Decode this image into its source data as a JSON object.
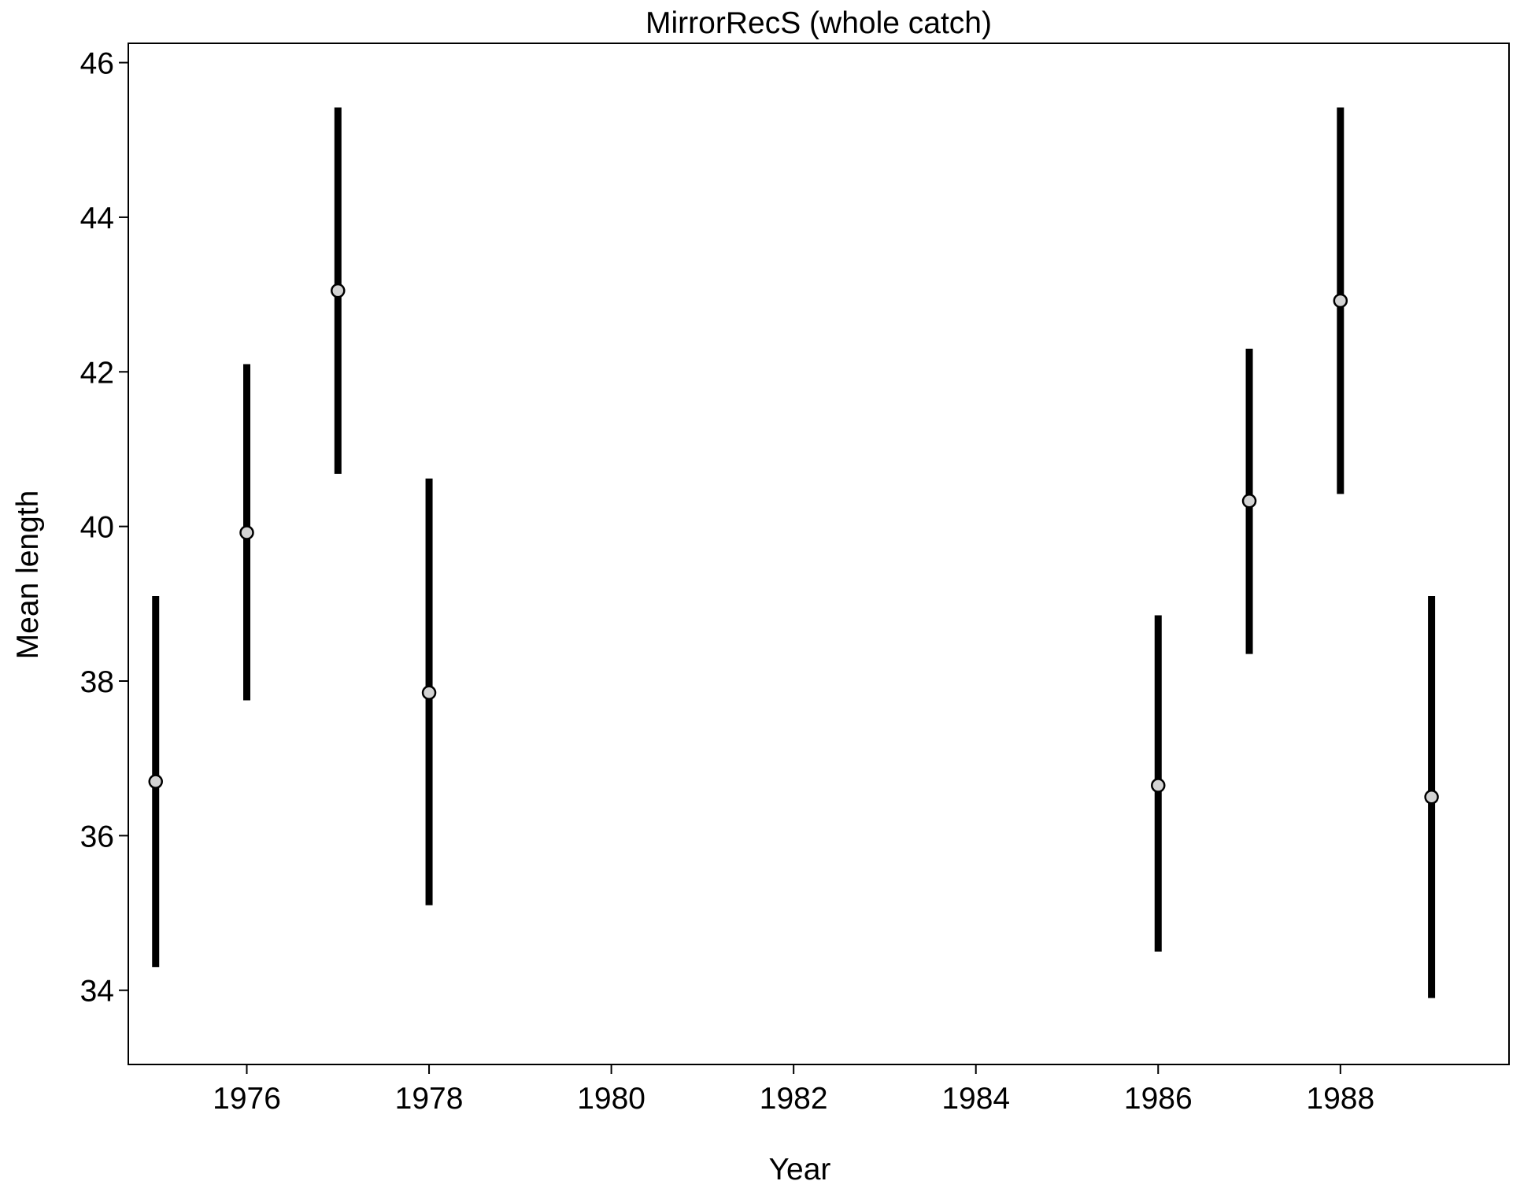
{
  "chart_data": {
    "type": "scatter",
    "title": "MirrorRecS (whole catch)",
    "xlabel": "Year",
    "ylabel": "Mean length",
    "xlim": [
      1974.7,
      1989.85
    ],
    "ylim": [
      33.04,
      46.25
    ],
    "x_ticks": [
      1976,
      1978,
      1980,
      1982,
      1984,
      1986,
      1988
    ],
    "y_ticks": [
      34,
      36,
      38,
      40,
      42,
      44,
      46
    ],
    "x_tick_labels": [
      "1976",
      "1978",
      "1980",
      "1982",
      "1984",
      "1986",
      "1988"
    ],
    "y_tick_labels": [
      "34",
      "36",
      "38",
      "40",
      "42",
      "44",
      "46"
    ],
    "grid": false,
    "point_fill": "#d3d3d3",
    "line_color": "#000000",
    "points": [
      {
        "x": 1975,
        "y": 36.7,
        "lower": 34.3,
        "upper": 39.1
      },
      {
        "x": 1976,
        "y": 39.92,
        "lower": 37.75,
        "upper": 42.1
      },
      {
        "x": 1977,
        "y": 43.05,
        "lower": 40.68,
        "upper": 45.42
      },
      {
        "x": 1978,
        "y": 37.85,
        "lower": 35.1,
        "upper": 40.62
      },
      {
        "x": 1986,
        "y": 36.65,
        "lower": 34.5,
        "upper": 38.85
      },
      {
        "x": 1987,
        "y": 40.33,
        "lower": 38.35,
        "upper": 42.3
      },
      {
        "x": 1988,
        "y": 42.92,
        "lower": 40.42,
        "upper": 45.42
      },
      {
        "x": 1989,
        "y": 36.5,
        "lower": 33.9,
        "upper": 39.1
      }
    ]
  }
}
